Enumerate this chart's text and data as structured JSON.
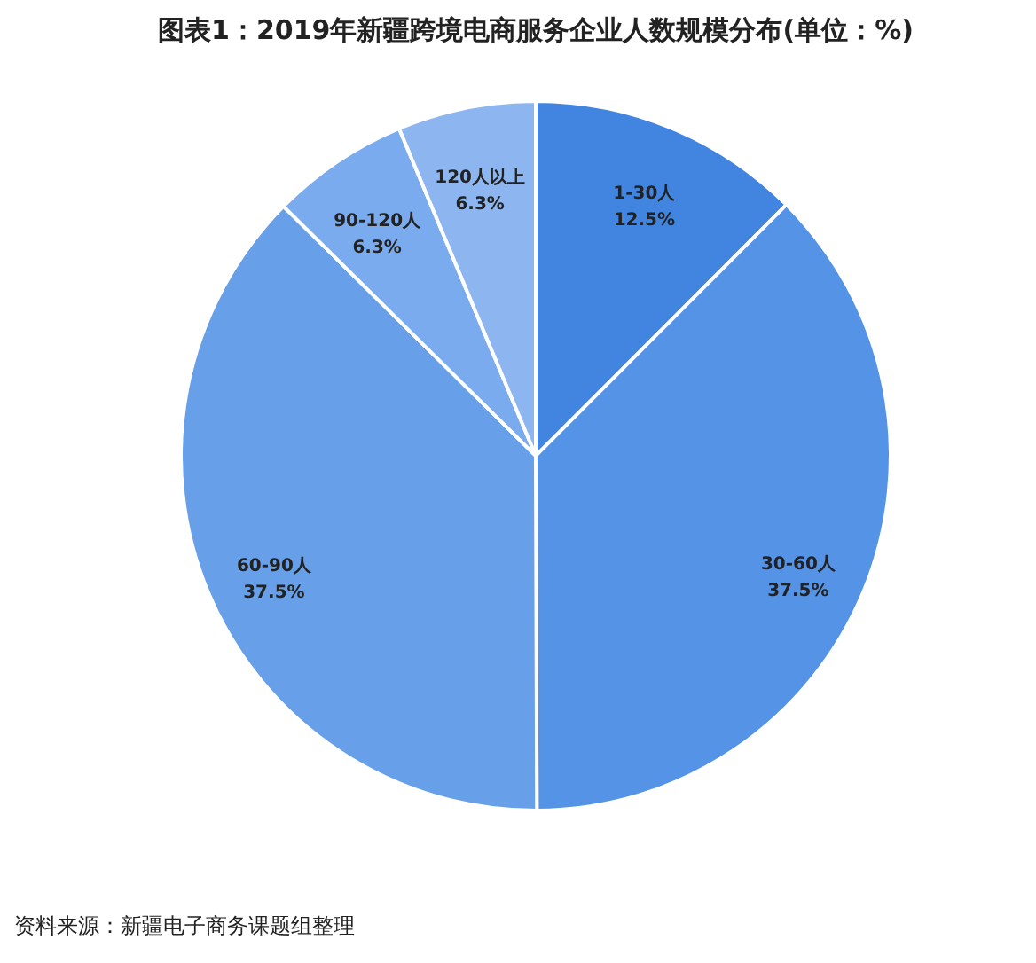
{
  "chart_data": {
    "type": "pie",
    "title": "图表1：2019年新疆跨境电商服务企业人数规模分布(单位：%)",
    "categories": [
      "1-30人",
      "30-60人",
      "60-90人",
      "90-120人",
      "120人以上"
    ],
    "values": [
      12.5,
      37.5,
      37.5,
      6.3,
      6.3
    ],
    "value_labels": [
      "12.5%",
      "37.5%",
      "37.5%",
      "6.3%",
      "6.3%"
    ],
    "colors": [
      "#4185e0",
      "#5593e6",
      "#679fe8",
      "#7aabee",
      "#8db6f0"
    ],
    "legend": false,
    "annotations": [
      "资料来源：新疆电子商务课题组整理"
    ]
  }
}
